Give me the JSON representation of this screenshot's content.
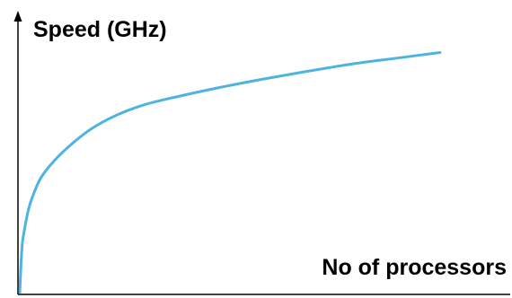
{
  "chart_data": {
    "type": "line",
    "title": "",
    "xlabel": "No of processors",
    "ylabel": "Speed (GHz)",
    "grid": false,
    "legend": "none",
    "xlim": [
      0,
      1
    ],
    "ylim": [
      0,
      1
    ],
    "series": [
      {
        "color": "#4eb3e0",
        "x": [
          0,
          0.005,
          0.01,
          0.02,
          0.03,
          0.05,
          0.08,
          0.12,
          0.17,
          0.23,
          0.3,
          0.38,
          0.47,
          0.57,
          0.68,
          0.8,
          0.9,
          1.0
        ],
        "y": [
          0,
          0.16,
          0.22,
          0.3,
          0.35,
          0.42,
          0.48,
          0.54,
          0.6,
          0.65,
          0.69,
          0.72,
          0.75,
          0.78,
          0.81,
          0.84,
          0.86,
          0.88
        ]
      }
    ]
  },
  "colors": {
    "curve": "#4eb3e0",
    "axis": "#000000"
  }
}
